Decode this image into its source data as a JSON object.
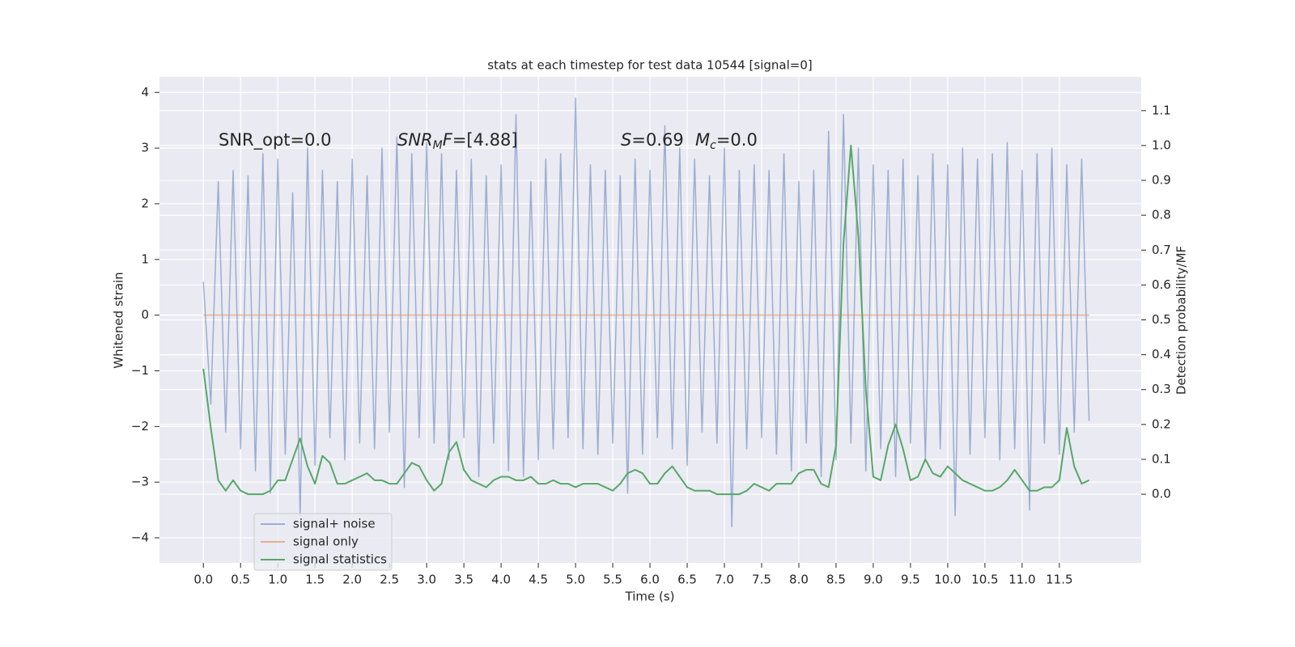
{
  "chart_data": {
    "type": "line",
    "title": "stats at each timestep for test data 10544 [signal=0]",
    "xlabel": "Time (s)",
    "ylabel": "Whitened strain",
    "y2label": "Detection probability/MF",
    "grid": true,
    "legend": "lower left",
    "xlim": [
      -0.59,
      12.6
    ],
    "ylim": [
      -4.45,
      4.28
    ],
    "y2lim": [
      -0.197,
      1.197
    ],
    "xticks": [
      {
        "value": 0,
        "label": "0.0"
      },
      0.5,
      {
        "value": 1,
        "label": "1.0"
      },
      1.5,
      {
        "value": 2,
        "label": "2.0"
      },
      2.5,
      {
        "value": 3,
        "label": "3.0"
      },
      3.5,
      {
        "value": 4,
        "label": "4.0"
      },
      4.5,
      {
        "value": 5,
        "label": "5.0"
      },
      5.5,
      {
        "value": 6,
        "label": "6.0"
      },
      6.5,
      {
        "value": 7,
        "label": "7.0"
      },
      7.5,
      {
        "value": 8,
        "label": "8.0"
      },
      8.5,
      {
        "value": 9,
        "label": "9.0"
      },
      9.5,
      {
        "value": 10,
        "label": "10.0"
      },
      10.5,
      {
        "value": 11,
        "label": "11.0"
      },
      11.5
    ],
    "yticks": [
      {
        "value": -4,
        "label": "−4"
      },
      {
        "value": -3,
        "label": "−3"
      },
      {
        "value": -2,
        "label": "−2"
      },
      {
        "value": -1,
        "label": "−1"
      },
      0,
      1,
      2,
      3,
      4
    ],
    "y2ticks": [
      {
        "value": 0,
        "label": "0.0"
      },
      0.1,
      0.2,
      0.3,
      0.4,
      0.5,
      0.6,
      0.7,
      0.8,
      0.9,
      {
        "value": 1,
        "label": "1.0"
      },
      1.1
    ],
    "x": [
      0,
      0.1,
      0.2,
      0.3,
      0.4,
      0.5,
      0.6,
      0.7,
      0.8,
      0.9,
      1,
      1.1,
      1.2,
      1.3,
      1.4,
      1.5,
      1.6,
      1.7,
      1.8,
      1.9,
      2,
      2.1,
      2.2,
      2.3,
      2.4,
      2.5,
      2.6,
      2.7,
      2.8,
      2.9,
      3,
      3.1,
      3.2,
      3.3,
      3.4,
      3.5,
      3.6,
      3.7,
      3.8,
      3.9,
      4,
      4.1,
      4.2,
      4.3,
      4.4,
      4.5,
      4.6,
      4.7,
      4.8,
      4.9,
      5,
      5.1,
      5.2,
      5.3,
      5.4,
      5.5,
      5.6,
      5.7,
      5.8,
      5.9,
      6,
      6.1,
      6.2,
      6.3,
      6.4,
      6.5,
      6.6,
      6.7,
      6.8,
      6.9,
      7,
      7.1,
      7.2,
      7.3,
      7.4,
      7.5,
      7.6,
      7.7,
      7.8,
      7.9,
      8,
      8.1,
      8.2,
      8.3,
      8.4,
      8.5,
      8.6,
      8.7,
      8.8,
      8.9,
      9,
      9.1,
      9.2,
      9.3,
      9.4,
      9.5,
      9.6,
      9.7,
      9.8,
      9.9,
      10,
      10.1,
      10.2,
      10.3,
      10.4,
      10.5,
      10.6,
      10.7,
      10.8,
      10.9,
      11,
      11.1,
      11.2,
      11.3,
      11.4,
      11.5,
      11.6,
      11.7,
      11.8,
      11.9
    ],
    "series": [
      {
        "name": "signal+ noise",
        "color": "#4c72b0",
        "opacity": 0.5,
        "values": [
          0.6,
          -1.6,
          2.4,
          -2.1,
          2.6,
          -2.4,
          2.5,
          -2.8,
          2.9,
          -3.2,
          2.8,
          -2.5,
          2.2,
          -3.6,
          3.0,
          -2.7,
          2.6,
          -2.2,
          2.4,
          -2.6,
          2.8,
          -2.3,
          2.5,
          -2.4,
          3.0,
          -2.1,
          3.2,
          -3.1,
          2.9,
          -2.2,
          3.1,
          -2.3,
          2.9,
          -2.6,
          2.6,
          -2.2,
          2.8,
          -2.9,
          2.5,
          -2.3,
          2.7,
          -2.8,
          3.6,
          -2.9,
          2.4,
          -2.6,
          2.8,
          -2.4,
          2.9,
          -2.2,
          3.9,
          -2.4,
          2.7,
          -2.5,
          2.6,
          -2.3,
          2.5,
          -3.2,
          2.8,
          -2.5,
          2.6,
          -2.2,
          3.4,
          -2.4,
          3.0,
          -2.7,
          2.8,
          -2.1,
          2.5,
          -2.3,
          3.0,
          -3.8,
          2.6,
          -2.4,
          2.7,
          -2.2,
          2.6,
          -2.5,
          2.9,
          -2.8,
          2.4,
          -2.3,
          2.6,
          -2.9,
          3.3,
          -2.6,
          3.6,
          -2.3,
          3.0,
          -2.8,
          2.7,
          -2.4,
          2.6,
          -2.9,
          2.8,
          -2.3,
          2.5,
          -2.6,
          2.9,
          -2.4,
          2.7,
          -3.6,
          3.0,
          -2.5,
          2.8,
          -2.2,
          2.9,
          -2.6,
          3.1,
          -2.4,
          2.6,
          -3.5,
          2.9,
          -2.3,
          3.0,
          -2.5,
          2.7,
          -2.1,
          2.8,
          -1.9
        ]
      },
      {
        "name": "signal only",
        "color": "#dd8452",
        "opacity": 0.6,
        "values": [
          0,
          0,
          0,
          0,
          0,
          0,
          0,
          0,
          0,
          0,
          0,
          0,
          0,
          0,
          0,
          0,
          0,
          0,
          0,
          0,
          0,
          0,
          0,
          0,
          0,
          0,
          0,
          0,
          0,
          0,
          0,
          0,
          0,
          0,
          0,
          0,
          0,
          0,
          0,
          0,
          0,
          0,
          0,
          0,
          0,
          0,
          0,
          0,
          0,
          0,
          0,
          0,
          0,
          0,
          0,
          0,
          0,
          0,
          0,
          0,
          0,
          0,
          0,
          0,
          0,
          0,
          0,
          0,
          0,
          0,
          0,
          0,
          0,
          0,
          0,
          0,
          0,
          0,
          0,
          0,
          0,
          0,
          0,
          0,
          0,
          0,
          0,
          0,
          0,
          0,
          0,
          0,
          0,
          0,
          0,
          0,
          0,
          0,
          0,
          0,
          0,
          0,
          0,
          0,
          0,
          0,
          0,
          0,
          0,
          0,
          0,
          0,
          0,
          0,
          0,
          0,
          0,
          0,
          0,
          0
        ]
      },
      {
        "name": "signal statistics",
        "color": "#55a868",
        "opacity": 1,
        "axis": "y2",
        "values": [
          0.36,
          0.19,
          0.04,
          0.01,
          0.04,
          0.01,
          0.0,
          0.0,
          0.0,
          0.01,
          0.04,
          0.04,
          0.1,
          0.16,
          0.08,
          0.03,
          0.11,
          0.09,
          0.03,
          0.03,
          0.04,
          0.05,
          0.06,
          0.04,
          0.04,
          0.03,
          0.03,
          0.06,
          0.09,
          0.08,
          0.04,
          0.01,
          0.03,
          0.12,
          0.15,
          0.07,
          0.04,
          0.03,
          0.02,
          0.04,
          0.05,
          0.05,
          0.04,
          0.04,
          0.05,
          0.03,
          0.03,
          0.04,
          0.03,
          0.03,
          0.02,
          0.03,
          0.03,
          0.03,
          0.02,
          0.01,
          0.03,
          0.06,
          0.07,
          0.06,
          0.03,
          0.03,
          0.06,
          0.08,
          0.05,
          0.02,
          0.01,
          0.01,
          0.01,
          0.0,
          0.0,
          0.0,
          0.0,
          0.01,
          0.03,
          0.02,
          0.01,
          0.03,
          0.03,
          0.03,
          0.06,
          0.07,
          0.07,
          0.03,
          0.02,
          0.14,
          0.72,
          1.0,
          0.74,
          0.3,
          0.05,
          0.04,
          0.14,
          0.2,
          0.13,
          0.04,
          0.05,
          0.1,
          0.06,
          0.05,
          0.08,
          0.06,
          0.04,
          0.03,
          0.02,
          0.01,
          0.01,
          0.02,
          0.04,
          0.07,
          0.04,
          0.01,
          0.01,
          0.02,
          0.02,
          0.04,
          0.19,
          0.08,
          0.03,
          0.04
        ]
      }
    ],
    "annotations": [
      [
        {
          "text": "SNR_opt=0.0"
        }
      ],
      [
        {
          "text": "SNR",
          "style": "italic"
        },
        {
          "text": "M",
          "style": "sub"
        },
        {
          "text": "F",
          "style": "italic"
        },
        {
          "text": "=[4.88]"
        }
      ],
      [
        {
          "text": "S",
          "style": "italic"
        },
        {
          "text": "=0.69"
        }
      ],
      [
        {
          "text": "M",
          "style": "italic"
        },
        {
          "text": "c",
          "style": "sub"
        },
        {
          "text": "=0.0"
        }
      ]
    ]
  }
}
